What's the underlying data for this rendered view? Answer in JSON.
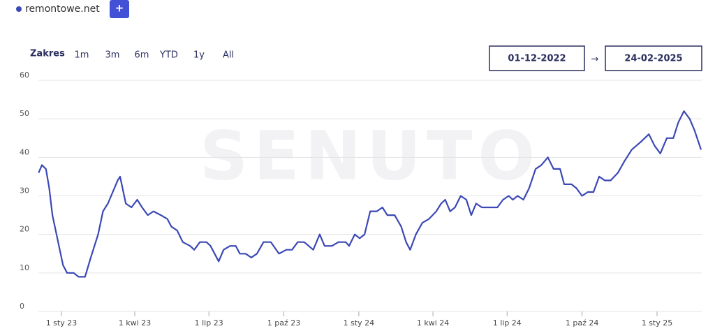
{
  "chart_data": {
    "type": "line",
    "x": [
      "2022-12-04",
      "2022-12-08",
      "2022-12-13",
      "2022-12-17",
      "2022-12-21",
      "2022-12-27",
      "2023-01-03",
      "2023-01-08",
      "2023-01-16",
      "2023-01-22",
      "2023-01-30",
      "2023-02-06",
      "2023-02-15",
      "2023-02-21",
      "2023-02-27",
      "2023-03-05",
      "2023-03-11",
      "2023-03-14",
      "2023-03-17",
      "2023-03-21",
      "2023-03-28",
      "2023-04-04",
      "2023-04-10",
      "2023-04-17",
      "2023-04-24",
      "2023-05-03",
      "2023-05-11",
      "2023-05-16",
      "2023-05-23",
      "2023-05-30",
      "2023-06-08",
      "2023-06-13",
      "2023-06-20",
      "2023-06-28",
      "2023-07-03",
      "2023-07-13",
      "2023-07-19",
      "2023-07-27",
      "2023-08-03",
      "2023-08-08",
      "2023-08-15",
      "2023-08-22",
      "2023-08-29",
      "2023-09-06",
      "2023-09-15",
      "2023-09-25",
      "2023-10-04",
      "2023-10-11",
      "2023-10-18",
      "2023-10-26",
      "2023-11-06",
      "2023-11-14",
      "2023-11-20",
      "2023-11-29",
      "2023-12-07",
      "2023-12-16",
      "2023-12-20",
      "2023-12-27",
      "2024-01-02",
      "2024-01-08",
      "2024-01-15",
      "2024-01-23",
      "2024-01-30",
      "2024-02-05",
      "2024-02-14",
      "2024-02-22",
      "2024-02-28",
      "2024-03-04",
      "2024-03-11",
      "2024-03-19",
      "2024-03-27",
      "2024-04-05",
      "2024-04-11",
      "2024-04-16",
      "2024-04-22",
      "2024-04-28",
      "2024-05-05",
      "2024-05-12",
      "2024-05-18",
      "2024-05-24",
      "2024-05-31",
      "2024-06-13",
      "2024-06-19",
      "2024-06-26",
      "2024-07-03",
      "2024-07-08",
      "2024-07-14",
      "2024-07-21",
      "2024-07-28",
      "2024-08-05",
      "2024-08-12",
      "2024-08-20",
      "2024-08-27",
      "2024-09-04",
      "2024-09-09",
      "2024-09-18",
      "2024-09-24",
      "2024-10-01",
      "2024-10-08",
      "2024-10-15",
      "2024-10-22",
      "2024-10-29",
      "2024-11-05",
      "2024-11-14",
      "2024-11-22",
      "2024-12-01",
      "2024-12-12",
      "2024-12-22",
      "2024-12-29",
      "2025-01-05",
      "2025-01-13",
      "2025-01-21",
      "2025-01-27",
      "2025-02-03",
      "2025-02-10",
      "2025-02-16",
      "2025-02-24"
    ],
    "series": [
      {
        "name": "remontowe.net",
        "color": "#3b48b5",
        "values": [
          36,
          38,
          37,
          32,
          25,
          19,
          12,
          10,
          10,
          9,
          9,
          14,
          20,
          26,
          28,
          31,
          34,
          35,
          32,
          28,
          27,
          29,
          27,
          25,
          26,
          25,
          24,
          22,
          21,
          18,
          17,
          16,
          18,
          18,
          17,
          13,
          16,
          17,
          17,
          15,
          15,
          14,
          15,
          18,
          18,
          15,
          16,
          16,
          18,
          18,
          16,
          20,
          17,
          17,
          18,
          18,
          17,
          20,
          19,
          20,
          26,
          26,
          27,
          25,
          25,
          22,
          18,
          16,
          20,
          23,
          24,
          26,
          28,
          29,
          26,
          27,
          30,
          29,
          25,
          28,
          27,
          27,
          27,
          29,
          30,
          29,
          30,
          29,
          32,
          37,
          38,
          40,
          37,
          37,
          33,
          33,
          32,
          30,
          31,
          31,
          35,
          34,
          34,
          36,
          39,
          42,
          44,
          46,
          43,
          41,
          45,
          45,
          49,
          52,
          50,
          47,
          42
        ]
      }
    ],
    "xlim": [
      "2022-12-01",
      "2025-02-24"
    ],
    "xticks": [
      {
        "value": "2023-01-01",
        "label": "1 sty 23"
      },
      {
        "value": "2023-04-01",
        "label": "1 kwi 23"
      },
      {
        "value": "2023-07-01",
        "label": "1 lip 23"
      },
      {
        "value": "2023-10-01",
        "label": "1 paź 23"
      },
      {
        "value": "2024-01-01",
        "label": "1 sty 24"
      },
      {
        "value": "2024-04-01",
        "label": "1 kwi 24"
      },
      {
        "value": "2024-07-01",
        "label": "1 lip 24"
      },
      {
        "value": "2024-10-01",
        "label": "1 paź 24"
      },
      {
        "value": "2025-01-01",
        "label": "1 sty 25"
      }
    ],
    "ylim": [
      0,
      60
    ],
    "yticks": [
      0,
      10,
      20,
      30,
      40,
      50,
      60
    ],
    "grid": true
  },
  "ui": {
    "add_button": "+",
    "range_label": "Zakres",
    "ranges": [
      "1m",
      "3m",
      "6m",
      "YTD",
      "1y",
      "All"
    ],
    "date_from": "01-12-2022",
    "arrow": "→",
    "date_to": "24-02-2025",
    "watermark": "SENUTO"
  }
}
